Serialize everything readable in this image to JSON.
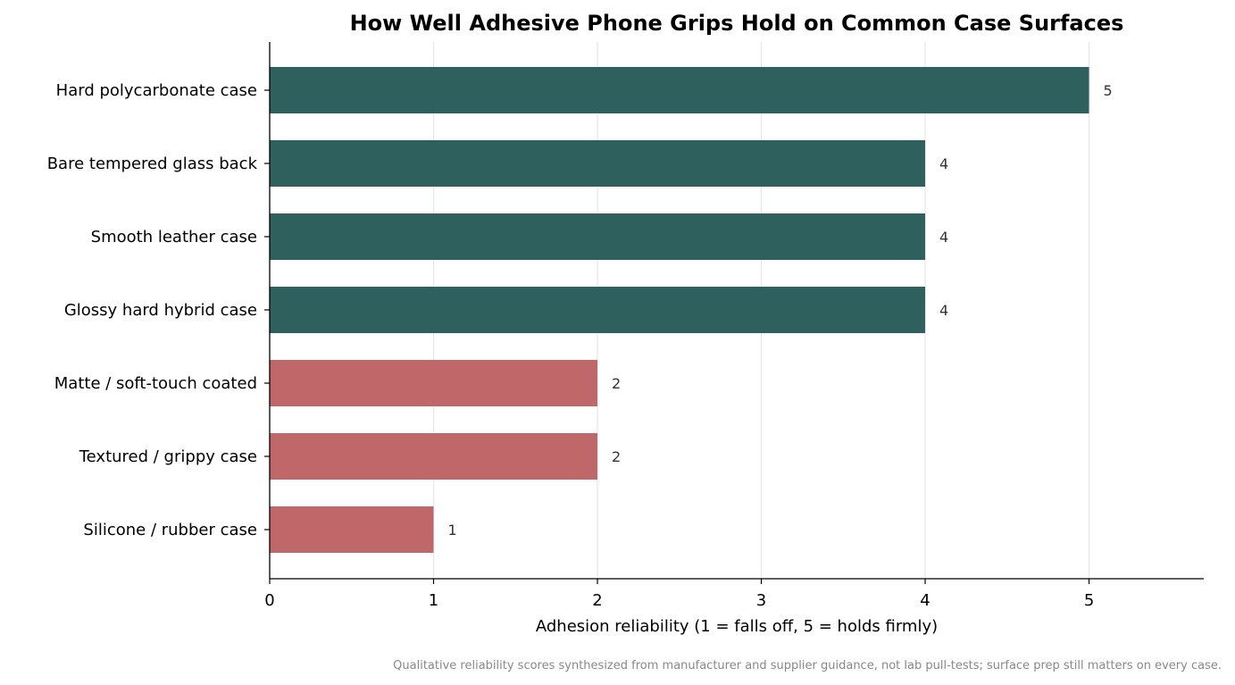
{
  "chart_data": {
    "type": "bar",
    "orientation": "horizontal",
    "title": "How Well Adhesive Phone Grips Hold on Common Case Surfaces",
    "xlabel": "Adhesion reliability (1 = falls off, 5 = holds firmly)",
    "ylabel": "",
    "xlim": [
      0,
      5.7
    ],
    "xticks": [
      0,
      1,
      2,
      3,
      4,
      5
    ],
    "grid": "vertical",
    "categories": [
      "Hard polycarbonate case",
      "Bare tempered glass back",
      "Smooth leather case",
      "Glossy hard hybrid case",
      "Matte / soft-touch coated",
      "Textured / grippy case",
      "Silicone / rubber case"
    ],
    "values": [
      5,
      4,
      4,
      4,
      2,
      2,
      1
    ],
    "bar_colors": [
      "#2e615d",
      "#2e615d",
      "#2e615d",
      "#2e615d",
      "#c0676a",
      "#c0676a",
      "#c0676a"
    ]
  },
  "footnote": "Qualitative reliability scores synthesized from manufacturer and supplier guidance, not lab pull-tests; surface prep still matters on every case."
}
